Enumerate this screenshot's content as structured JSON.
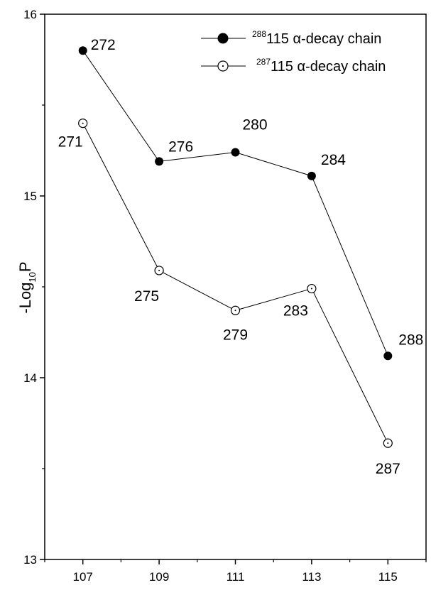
{
  "chart_data": {
    "type": "line",
    "title": "",
    "xlabel": "",
    "ylabel": "-Log10P",
    "ylabel_parts": {
      "prefix": "-Log",
      "subscript": "10",
      "suffix": "P"
    },
    "xlim": [
      106,
      116
    ],
    "ylim": [
      13,
      16
    ],
    "x_ticks": [
      107,
      109,
      111,
      113,
      115
    ],
    "y_ticks": [
      13,
      14,
      15,
      16
    ],
    "grid": false,
    "legend_position": "top-right",
    "series": [
      {
        "name": "288115 α-decay chain",
        "name_sup": "288",
        "name_main": "115 α-decay chain",
        "marker": "filled-circle",
        "color": "#000000",
        "x": [
          107,
          109,
          111,
          113,
          115
        ],
        "y": [
          15.8,
          15.19,
          15.24,
          15.11,
          14.12
        ],
        "point_labels": [
          "272",
          "276",
          "280",
          "284",
          "288"
        ]
      },
      {
        "name": "287115 α-decay chain",
        "name_sup": "287",
        "name_main": "115 α-decay chain",
        "marker": "open-circle-dot",
        "color": "#000000",
        "x": [
          107,
          109,
          111,
          113,
          115
        ],
        "y": [
          15.4,
          14.59,
          14.37,
          14.49,
          13.64
        ],
        "point_labels": [
          "271",
          "275",
          "279",
          "283",
          "287"
        ]
      }
    ]
  }
}
